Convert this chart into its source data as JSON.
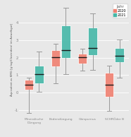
{
  "categories": [
    "Mineralische\nDüngung",
    "Bodendüngung",
    "Gärspurnus",
    "SCHRÖder B"
  ],
  "ylabel": "Äquivalent zu KMG [g log(Clostridien) im Anwelkgut]",
  "legend_title": "Jahr",
  "years": [
    "2020",
    "2021"
  ],
  "colors": {
    "2020": "#F08070",
    "2021": "#45B8A8"
  },
  "background_color": "#E8E8E8",
  "panel_color": "#E8E8E8",
  "ylim": [
    -1.4,
    5.2
  ],
  "yticks": [
    -1,
    0,
    1,
    2,
    3,
    4
  ],
  "boxplot_data": {
    "Mineralische\nDüngung": {
      "2020": {
        "q1": 0.15,
        "median": 0.45,
        "q3": 0.72,
        "whislo": -1.15,
        "whishi": 0.85
      },
      "2021": {
        "q1": 0.55,
        "median": 1.05,
        "q3": 1.55,
        "whislo": 0.05,
        "whishi": 2.35
      }
    },
    "Bodendüngung": {
      "2020": {
        "q1": 1.5,
        "median": 2.05,
        "q3": 2.45,
        "whislo": 0.55,
        "whishi": 2.8
      },
      "2021": {
        "q1": 2.0,
        "median": 2.45,
        "q3": 3.85,
        "whislo": 1.05,
        "whishi": 4.85
      }
    },
    "Gärspurnus": {
      "2020": {
        "q1": 1.65,
        "median": 2.05,
        "q3": 2.25,
        "whislo": 1.25,
        "whishi": 2.5
      },
      "2021": {
        "q1": 2.15,
        "median": 2.55,
        "q3": 3.75,
        "whislo": 1.3,
        "whishi": 4.55
      }
    },
    "SCHRÖder B": {
      "2020": {
        "q1": -0.25,
        "median": 0.45,
        "q3": 1.15,
        "whislo": -1.05,
        "whishi": 1.55
      },
      "2021": {
        "q1": 1.75,
        "median": 2.1,
        "q3": 2.55,
        "whislo": 0.85,
        "whishi": 3.05
      }
    }
  }
}
